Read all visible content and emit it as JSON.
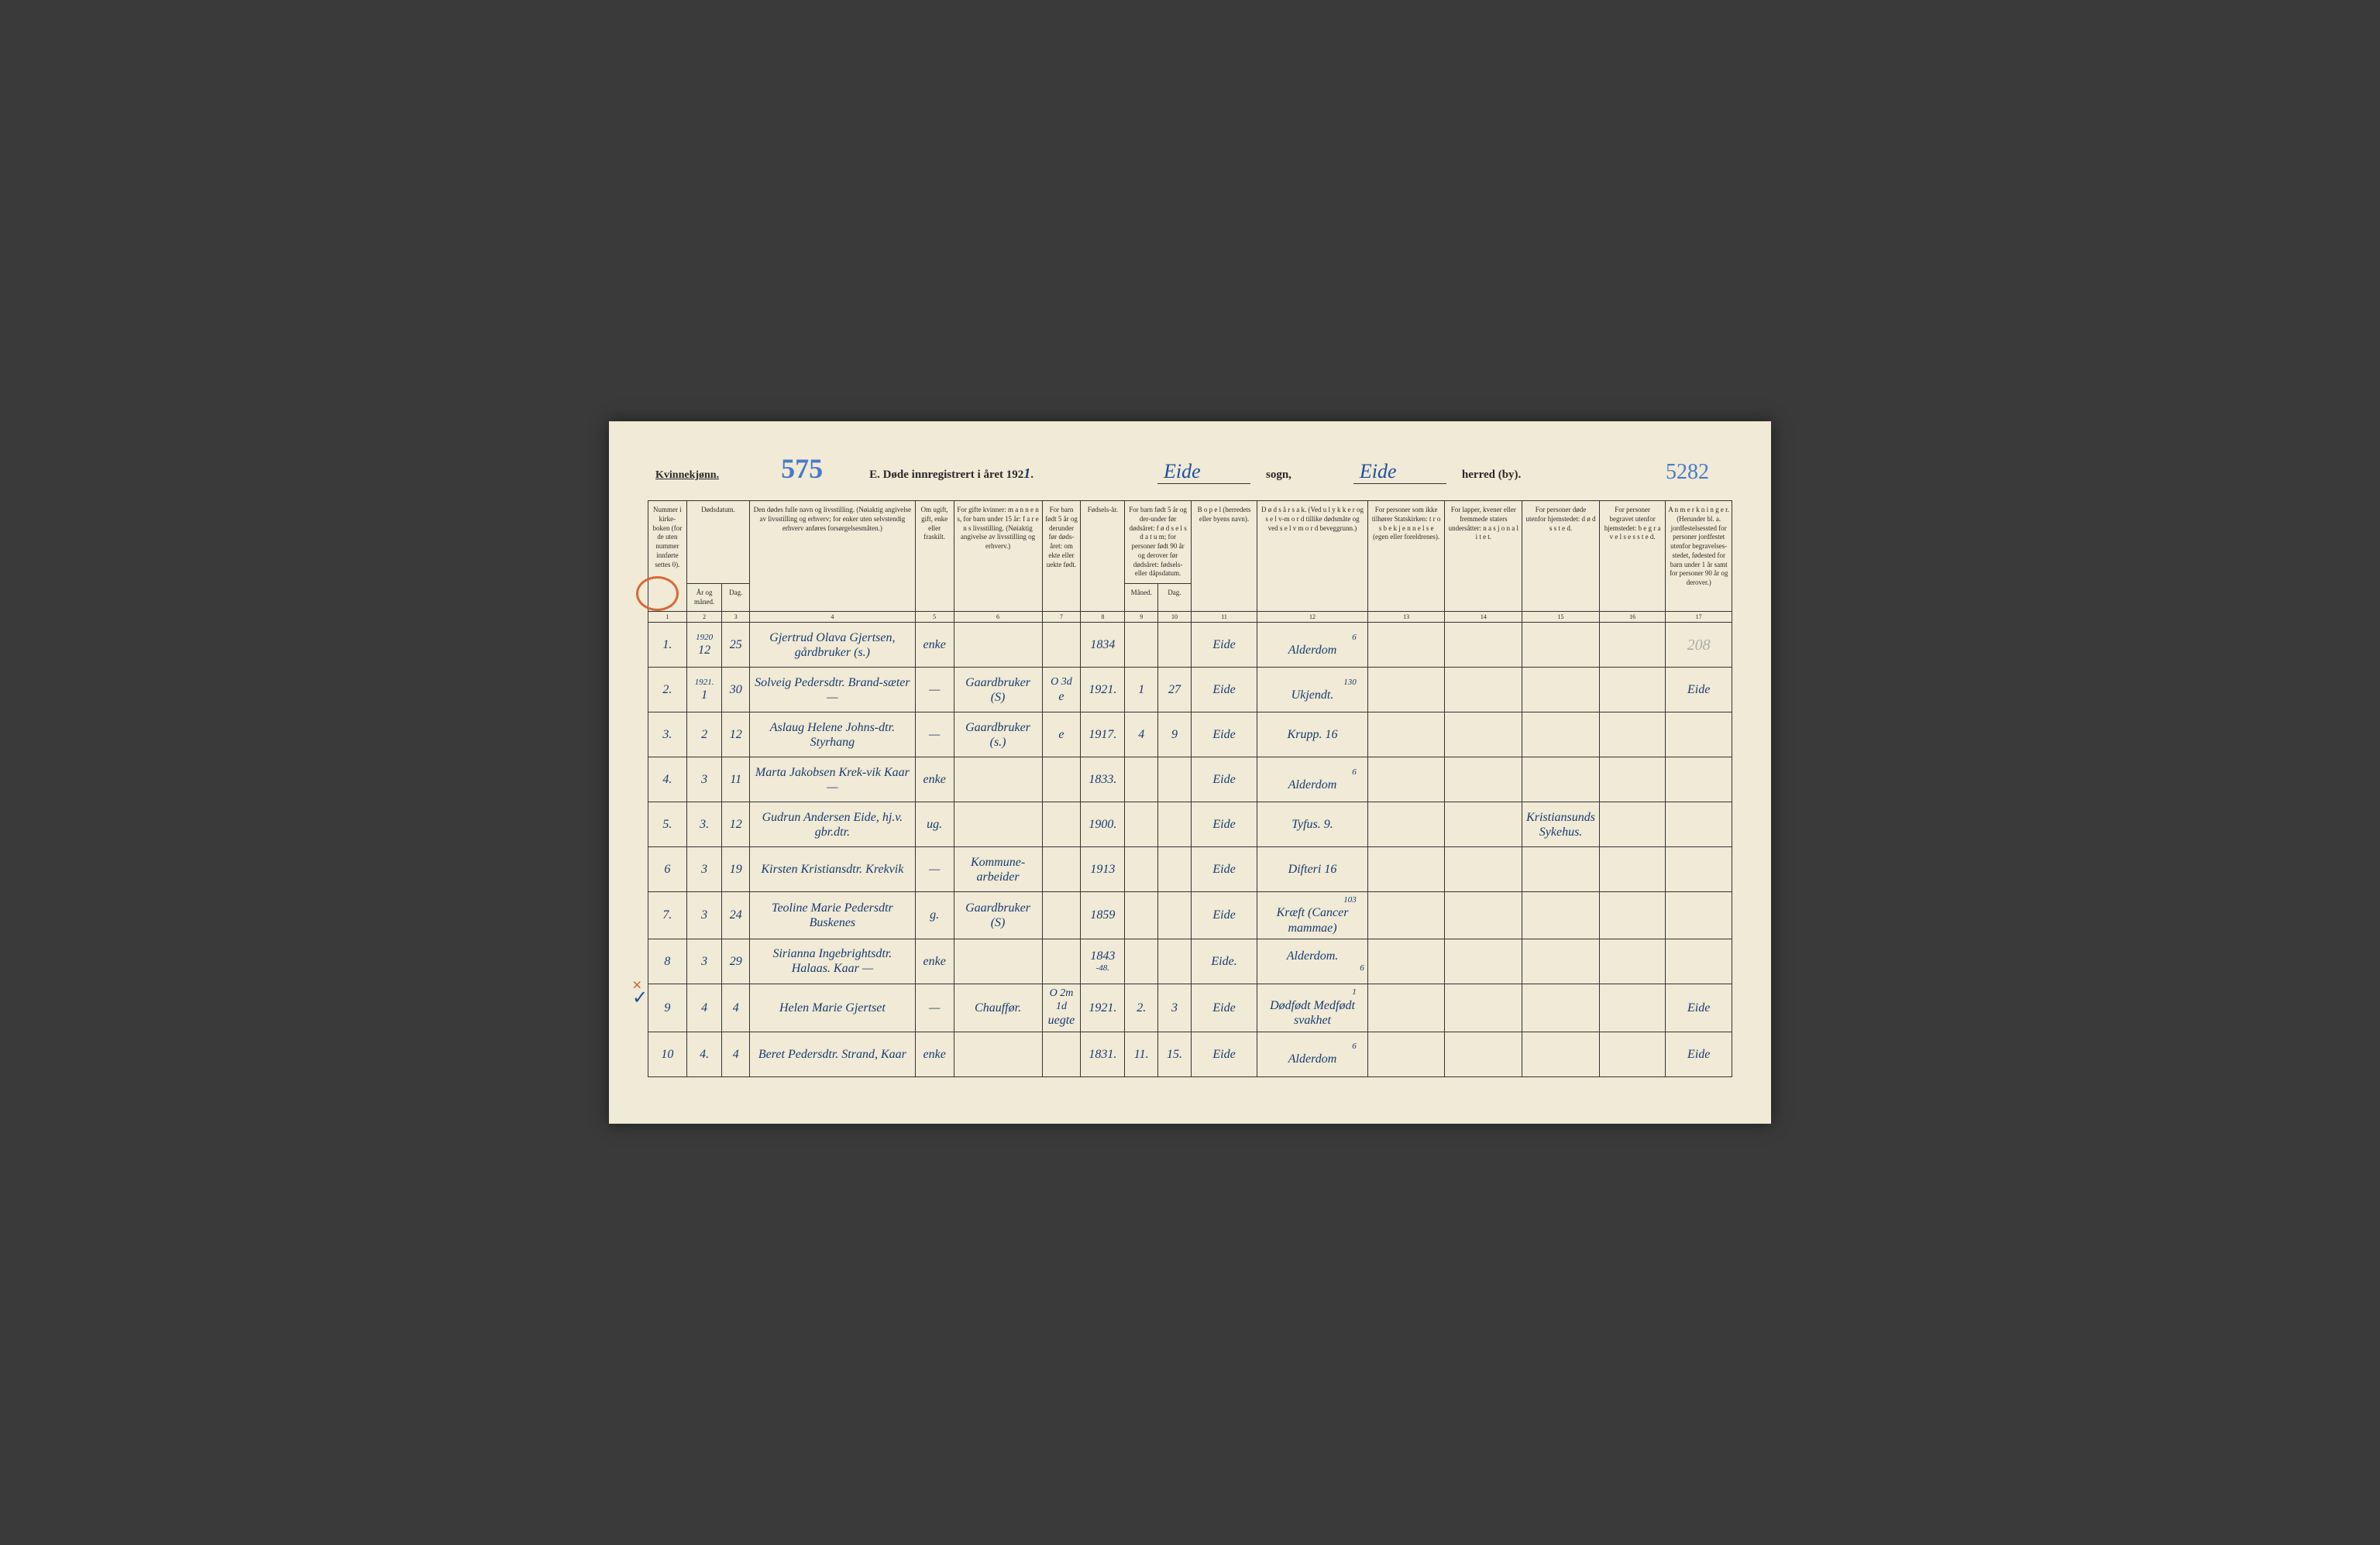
{
  "header": {
    "gender_label": "Kvinnekjønn.",
    "page_num_hand": "575",
    "form_title_prefix": "E.  Døde innregistrert i året 192",
    "year_suffix": "1",
    "form_title_suffix": ".",
    "sogn_value": "Eide",
    "sogn_label": "sogn,",
    "herred_value": "Eide",
    "herred_label": "herred (by).",
    "right_num": "5282"
  },
  "columns": {
    "c1": "Nummer i kirke-boken (for de uten nummer innførte settes 0).",
    "c2": "Dødsdatum.",
    "c2a": "År og måned.",
    "c2b": "Dag.",
    "c4": "Den dødes fulle navn og livsstilling. (Nøiaktig angivelse av livsstilling og erhverv; for enker uten selvstendig erhverv anføres forsørgelsesmåten.)",
    "c5": "Om ugift, gift, enke eller fraskilt.",
    "c6": "For gifte kvinner: m a n n e n s, for barn under 15 år: f a r e n s livsstilling. (Nøiaktig angivelse av livsstilling og erhverv.)",
    "c7": "For barn født 5 år og derunder før døds-året: om ekte eller uekte født.",
    "c8": "Fødsels-år.",
    "c9_10": "For barn født 5 år og der-under før dødsåret: f ø d s e l s d a t u m; for personer født 90 år og derover før dødsåret: fødsels- eller dåpsdatum.",
    "c9": "Måned.",
    "c10": "Dag.",
    "c11": "B o p e l (herredets eller byens navn).",
    "c12": "D ø d s å r s a k. (Ved u l y k k e r og s e l v-m o r d tillike dødsmåte og ved s e l v m o r d beveggrunn.)",
    "c13": "For personer som ikke tilhører Statskirken: t r o s b e k j e n n e l s e (egen eller foreldrenes).",
    "c14": "For lapper, kvener eller fremmede staters undersåtter: n a s j o n a l i t e t.",
    "c15": "For personer døde utenfor hjemstedet: d ø d s s t e d.",
    "c16": "For personer begravet utenfor hjemstedet: b e g r a v e l s e s s t e d.",
    "c17": "A n m e r k n i n g e r. (Herunder bl. a. jordfestelsessted for personer jordfestet utenfor begravelses-stedet, fødested for barn under 1 år samt for personer 90 år og derover.)"
  },
  "colnums": [
    "1",
    "2",
    "3",
    "4",
    "5",
    "6",
    "7",
    "8",
    "9",
    "10",
    "11",
    "12",
    "13",
    "14",
    "15",
    "16",
    "17"
  ],
  "rows": [
    {
      "num": "1.",
      "year_month": "1920",
      "year_month2": "12",
      "day": "25",
      "name": "Gjertrud Olava Gjertsen, gårdbruker (s.)",
      "status": "enke",
      "profession": "",
      "ekte": "",
      "birth_year": "1834",
      "birth_month": "",
      "birth_day": "",
      "place": "Eide",
      "cause_above": "6",
      "cause": "Alderdom",
      "col15": "",
      "col17": "208",
      "col17_class": "hand-208"
    },
    {
      "num": "2.",
      "year_month": "1921.",
      "year_month2": "1",
      "day": "30",
      "name": "Solveig Pedersdtr. Brand-sæter —",
      "status": "—",
      "profession": "Gaardbruker (S)",
      "ekte_above": "O 3d",
      "ekte": "e",
      "birth_year": "1921.",
      "birth_month": "1",
      "birth_day": "27",
      "place": "Eide",
      "cause_above": "130",
      "cause": "Ukjendt.",
      "col15": "",
      "col17": "Eide"
    },
    {
      "num": "3.",
      "year_month": "",
      "year_month2": "2",
      "day": "12",
      "name": "Aslaug Helene Johns-dtr. Styrhang",
      "status": "—",
      "profession": "Gaardbruker (s.)",
      "ekte": "e",
      "birth_year": "1917.",
      "birth_month": "4",
      "birth_day": "9",
      "place": "Eide",
      "cause": "Krupp. 16",
      "col15": "",
      "col17": ""
    },
    {
      "num": "4.",
      "year_month": "",
      "year_month2": "3",
      "day": "11",
      "name": "Marta Jakobsen Krek-vik    Kaar —",
      "status": "enke",
      "profession": "",
      "ekte": "",
      "birth_year": "1833.",
      "birth_month": "",
      "birth_day": "",
      "place": "Eide",
      "cause_above": "6",
      "cause": "Alderdom",
      "col15": "",
      "col17": ""
    },
    {
      "num": "5.",
      "year_month": "",
      "year_month2": "3.",
      "day": "12",
      "name": "Gudrun Andersen Eide, hj.v. gbr.dtr.",
      "status": "ug.",
      "profession": "",
      "ekte": "",
      "birth_year": "1900.",
      "birth_month": "",
      "birth_day": "",
      "place": "Eide",
      "cause": "Tyfus. 9.",
      "col15": "Kristiansunds Sykehus.",
      "col17": ""
    },
    {
      "num": "6",
      "year_month": "",
      "year_month2": "3",
      "day": "19",
      "name": "Kirsten Kristiansdtr. Krekvik",
      "status": "—",
      "profession": "Kommune-arbeider",
      "ekte": "",
      "birth_year": "1913",
      "birth_month": "",
      "birth_day": "",
      "place": "Eide",
      "cause": "Difteri 16",
      "col15": "",
      "col17": ""
    },
    {
      "num": "7.",
      "year_month": "",
      "year_month2": "3",
      "day": "24",
      "name": "Teoline Marie Pedersdtr Buskenes",
      "status": "g.",
      "profession": "Gaardbruker (S)",
      "ekte": "",
      "birth_year": "1859",
      "birth_month": "",
      "birth_day": "",
      "place": "Eide",
      "cause_above": "103",
      "cause": "Kræft (Cancer mammae)",
      "col15": "",
      "col17": ""
    },
    {
      "num": "8",
      "year_month": "",
      "year_month2": "3",
      "day": "29",
      "name": "Sirianna Ingebrightsdtr. Halaas.    Kaar —",
      "status": "enke",
      "profession": "",
      "ekte": "",
      "birth_year": "1843",
      "birth_year2": "-48.",
      "birth_month": "",
      "birth_day": "",
      "place": "Eide.",
      "cause": "Alderdom.",
      "cause_below": "6",
      "col15": "",
      "col17": ""
    },
    {
      "num": "9",
      "year_month": "",
      "year_month2": "4",
      "day": "4",
      "name": "Helen Marie Gjertset",
      "status": "—",
      "profession": "Chauffør.",
      "ekte_above": "O 2m 1d",
      "ekte": "uegte",
      "birth_year": "1921.",
      "birth_month": "2.",
      "birth_day": "3",
      "place": "Eide",
      "cause_above": "1",
      "cause": "Dødfødt Medfødt svakhet",
      "col15": "",
      "col17": "Eide"
    },
    {
      "num": "10",
      "year_month": "",
      "year_month2": "4.",
      "day": "4",
      "name": "Beret Pedersdtr. Strand, Kaar",
      "status": "enke",
      "profession": "",
      "ekte": "",
      "birth_year": "1831.",
      "birth_month": "11.",
      "birth_day": "15.",
      "place": "Eide",
      "cause_above": "6",
      "cause": "Alderdom",
      "col15": "",
      "col17": "Eide"
    }
  ],
  "colors": {
    "paper": "#f0ead6",
    "ink_print": "#2a2a2a",
    "ink_hand": "#1a3a6e",
    "ink_blue": "#2050a0",
    "ink_orange": "#d66a3a",
    "border": "#333333"
  },
  "col_widths_pct": [
    3.5,
    3.2,
    2.5,
    15,
    3.5,
    8,
    3.5,
    4,
    3,
    3,
    6,
    10,
    7,
    7,
    7,
    6,
    6
  ]
}
